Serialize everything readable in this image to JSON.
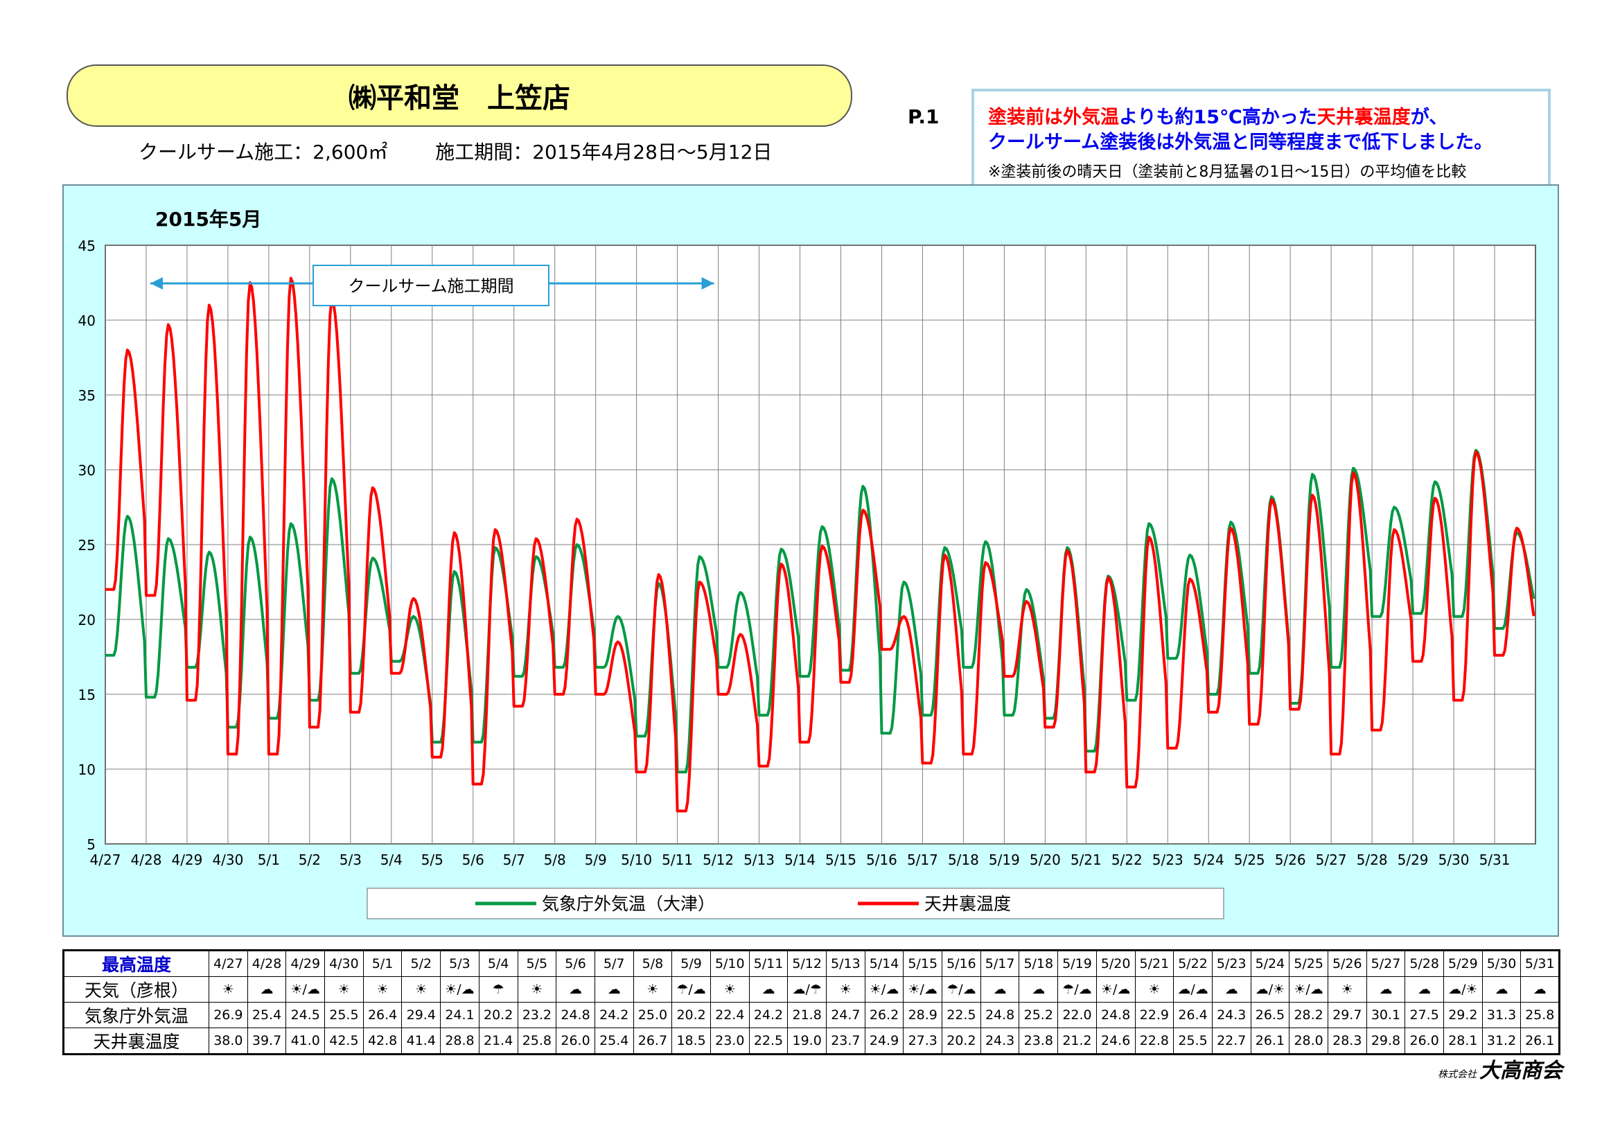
{
  "header": {
    "title": "㈱平和堂　上笠店",
    "construction": "クールサーム施工：2,600㎡",
    "period": "施工期間：2015年4月28日～5月12日",
    "page": "P.1"
  },
  "note": {
    "line1_red1": "塗装前は",
    "line1_red2": "外気温",
    "line1_blue1": "よりも約15℃高かった",
    "line1_red3": "天井裏温度",
    "line1_blue2": "が、",
    "line2": "クールサーム塗装後は外気温と同等程度まで低下しました。",
    "line3": "※塗装前後の晴天日（塗装前と8月猛暑の1日～15日）の平均値を比較"
  },
  "chart_data": {
    "type": "line",
    "title": "2015年5月",
    "ylim": [
      5,
      45
    ],
    "yticks": [
      5,
      10,
      15,
      20,
      25,
      30,
      35,
      40,
      45
    ],
    "grid": true,
    "legend_position": "bottom",
    "categories": [
      "4/27",
      "4/28",
      "4/29",
      "4/30",
      "5/1",
      "5/2",
      "5/3",
      "5/4",
      "5/5",
      "5/6",
      "5/7",
      "5/8",
      "5/9",
      "5/10",
      "5/11",
      "5/12",
      "5/13",
      "5/14",
      "5/15",
      "5/16",
      "5/17",
      "5/18",
      "5/19",
      "5/20",
      "5/21",
      "5/22",
      "5/23",
      "5/24",
      "5/25",
      "5/26",
      "5/27",
      "5/28",
      "5/29",
      "5/30",
      "5/31"
    ],
    "annotation": {
      "label": "クールサーム施工期間",
      "from": "4/28",
      "to": "5/12"
    },
    "series": [
      {
        "name": "気象庁外気温（大津）",
        "color": "#009944",
        "daily_min": [
          17.6,
          14.8,
          16.8,
          12.8,
          13.4,
          14.6,
          16.4,
          17.2,
          11.8,
          11.8,
          16.2,
          16.8,
          16.8,
          12.2,
          9.8,
          16.8,
          13.6,
          16.2,
          16.6,
          12.4,
          13.6,
          16.8,
          13.6,
          13.4,
          11.2,
          14.6,
          17.4,
          15.0,
          16.4,
          14.4,
          16.8,
          20.2,
          20.4,
          20.2,
          19.4
        ],
        "daily_max": [
          26.9,
          25.4,
          24.5,
          25.5,
          26.4,
          29.4,
          24.1,
          20.2,
          23.2,
          24.8,
          24.2,
          25.0,
          20.2,
          22.4,
          24.2,
          21.8,
          24.7,
          26.2,
          28.9,
          22.5,
          24.8,
          25.2,
          22.0,
          24.8,
          22.9,
          26.4,
          24.3,
          26.5,
          28.2,
          29.7,
          30.1,
          27.5,
          29.2,
          31.3,
          25.8
        ]
      },
      {
        "name": "天井裏温度",
        "color": "#ff0000",
        "daily_min": [
          22.0,
          21.6,
          14.6,
          11.0,
          11.0,
          12.8,
          13.8,
          16.4,
          10.8,
          9.0,
          14.2,
          15.0,
          15.0,
          9.8,
          7.2,
          15.0,
          10.2,
          11.8,
          15.8,
          18.0,
          10.4,
          11.0,
          16.2,
          12.8,
          9.8,
          8.8,
          11.4,
          13.8,
          13.0,
          14.0,
          11.0,
          12.6,
          17.2,
          14.6,
          17.6
        ],
        "daily_max": [
          38.0,
          39.7,
          41.0,
          42.5,
          42.8,
          41.4,
          28.8,
          21.4,
          25.8,
          26.0,
          25.4,
          26.7,
          18.5,
          23.0,
          22.5,
          19.0,
          23.7,
          24.9,
          27.3,
          20.2,
          24.3,
          23.8,
          21.2,
          24.6,
          22.8,
          25.5,
          22.7,
          26.1,
          28.0,
          28.3,
          29.8,
          26.0,
          28.1,
          31.2,
          26.1
        ]
      }
    ]
  },
  "table": {
    "header_label": "最高温度",
    "weather_label": "天気（彦根）",
    "outside_label": "気象庁外気温",
    "ceiling_label": "天井裏温度",
    "dates": [
      "4/27",
      "4/28",
      "4/29",
      "4/30",
      "5/1",
      "5/2",
      "5/3",
      "5/4",
      "5/5",
      "5/6",
      "5/7",
      "5/8",
      "5/9",
      "5/10",
      "5/11",
      "5/12",
      "5/13",
      "5/14",
      "5/15",
      "5/16",
      "5/17",
      "5/18",
      "5/19",
      "5/20",
      "5/21",
      "5/22",
      "5/23",
      "5/24",
      "5/25",
      "5/26",
      "5/27",
      "5/28",
      "5/29",
      "5/30",
      "5/31"
    ],
    "weather": [
      "☀",
      "☁",
      "☀/☁",
      "☀",
      "☀",
      "☀",
      "☀/☁",
      "☂",
      "☀",
      "☁",
      "☁",
      "☀",
      "☂/☁",
      "☀",
      "☁",
      "☁/☂",
      "☀",
      "☀/☁",
      "☀/☁",
      "☂/☁",
      "☁",
      "☁",
      "☂/☁",
      "☀/☁",
      "☀",
      "☁/☁",
      "☁",
      "☁/☀",
      "☀/☁",
      "☀",
      "☁",
      "☁",
      "☁/☀",
      "☁",
      "☁"
    ],
    "outside": [
      "26.9",
      "25.4",
      "24.5",
      "25.5",
      "26.4",
      "29.4",
      "24.1",
      "20.2",
      "23.2",
      "24.8",
      "24.2",
      "25.0",
      "20.2",
      "22.4",
      "24.2",
      "21.8",
      "24.7",
      "26.2",
      "28.9",
      "22.5",
      "24.8",
      "25.2",
      "22.0",
      "24.8",
      "22.9",
      "26.4",
      "24.3",
      "26.5",
      "28.2",
      "29.7",
      "30.1",
      "27.5",
      "29.2",
      "31.3",
      "25.8"
    ],
    "ceiling": [
      "38.0",
      "39.7",
      "41.0",
      "42.5",
      "42.8",
      "41.4",
      "28.8",
      "21.4",
      "25.8",
      "26.0",
      "25.4",
      "26.7",
      "18.5",
      "23.0",
      "22.5",
      "19.0",
      "23.7",
      "24.9",
      "27.3",
      "20.2",
      "24.3",
      "23.8",
      "21.2",
      "24.6",
      "22.8",
      "25.5",
      "22.7",
      "26.1",
      "28.0",
      "28.3",
      "29.8",
      "26.0",
      "28.1",
      "31.2",
      "26.1"
    ]
  },
  "company": {
    "small": "株式会社",
    "name": "大高商会"
  }
}
